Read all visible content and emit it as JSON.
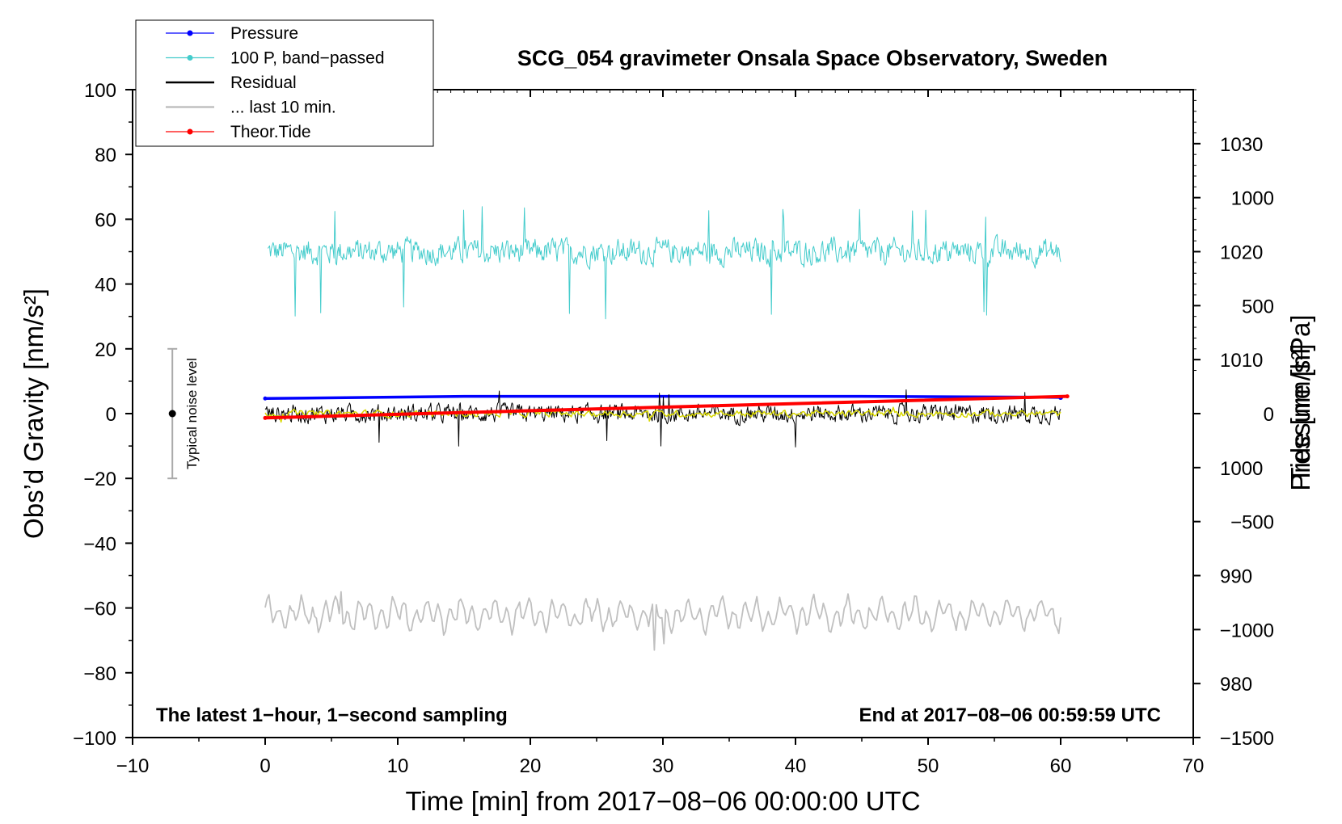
{
  "chart_data": {
    "type": "line",
    "title": "SCG_054 gravimeter Onsala Space Observatory, Sweden",
    "xlabel": "Time [min] from 2017−08−06 00:00:00 UTC",
    "ylabel_left": "Obs’d Gravity [nm/s²]",
    "ylabel_right_top": "Pressure [hPa]",
    "ylabel_right_bottom": "Tide [nm/s²]",
    "xlim": [
      -10,
      70
    ],
    "ylim": [
      -100,
      100
    ],
    "pressure_ylim": [
      975,
      1035
    ],
    "tide_ylim": [
      -1500,
      1500
    ],
    "x_ticks": [
      -10,
      0,
      10,
      20,
      30,
      40,
      50,
      60,
      70
    ],
    "x_tick_labels": [
      "−10",
      "0",
      "10",
      "20",
      "30",
      "40",
      "50",
      "60",
      "70"
    ],
    "y_ticks": [
      -100,
      -80,
      -60,
      -40,
      -20,
      0,
      20,
      40,
      60,
      80,
      100
    ],
    "y_tick_labels": [
      "−100",
      "−80",
      "−60",
      "−40",
      "−20",
      "0",
      "20",
      "40",
      "60",
      "80",
      "100"
    ],
    "pressure_ticks": [
      980,
      990,
      1000,
      1010,
      1020,
      1030
    ],
    "pressure_tick_labels": [
      "980",
      "990",
      "1000",
      "1010",
      "1020",
      "1030"
    ],
    "tide_ticks": [
      -1500,
      -1000,
      -500,
      0,
      500,
      1000
    ],
    "tide_tick_labels": [
      "−1500",
      "−1000",
      "−500",
      "0",
      "500",
      "1000"
    ],
    "annotation_left": "The latest 1−hour, 1−second sampling",
    "annotation_right": "End at 2017−08−06 00:59:59 UTC",
    "noise_bar": {
      "x": -7,
      "y": 0,
      "low": -20,
      "high": 20,
      "label": "Typical noise level"
    },
    "series": [
      {
        "name": "Pressure",
        "axis": "pressure",
        "color": "#0000ff",
        "x": [
          0,
          15,
          30,
          45,
          60
        ],
        "values": [
          1006.4,
          1006.6,
          1006.6,
          1006.6,
          1006.5
        ]
      },
      {
        "name": "100 P, band−passed",
        "axis": "gravity",
        "color": "#44cccc",
        "mean": 50,
        "typical_range": [
          42,
          57
        ],
        "extremes": [
          29,
          64
        ]
      },
      {
        "name": "Residual",
        "axis": "gravity",
        "color": "#000000",
        "mean": 0,
        "typical_range": [
          -5,
          5
        ],
        "extremes": [
          -11,
          8
        ]
      },
      {
        "name": "... last 10 min.",
        "axis": "gravity",
        "color": "#c0c0c0",
        "mean": -62,
        "typical_range": [
          -66,
          -57
        ],
        "extremes": [
          -73,
          -55
        ]
      },
      {
        "name": "Theor.Tide",
        "axis": "tide",
        "color": "#ff0000",
        "x": [
          0,
          30,
          60.5
        ],
        "values": [
          -20,
          30,
          80
        ]
      }
    ],
    "overlay_series": {
      "name": "smoothed residual",
      "color": "#d8d800",
      "axis": "gravity",
      "mean": 0,
      "typical_range": [
        -2,
        2
      ]
    },
    "legend": [
      {
        "label": "Pressure",
        "color": "#0000ff",
        "marker": true
      },
      {
        "label": "100 P, band−passed",
        "color": "#44cccc",
        "marker": true
      },
      {
        "label": "Residual",
        "color": "#000000",
        "marker": false
      },
      {
        "label": "... last 10 min.",
        "color": "#c0c0c0",
        "marker": false
      },
      {
        "label": "Theor.Tide",
        "color": "#ff0000",
        "marker": true
      }
    ],
    "legend_position": "top-left"
  }
}
